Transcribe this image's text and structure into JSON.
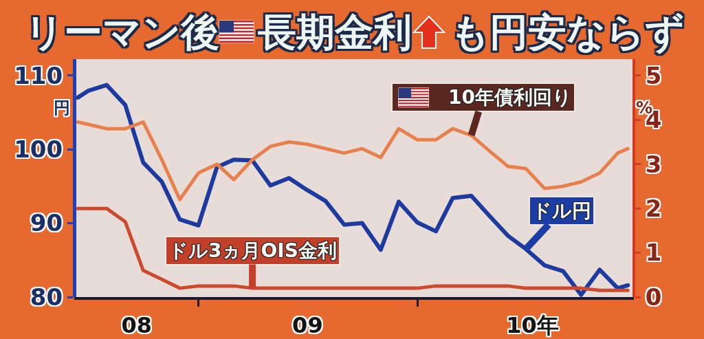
{
  "chart_data": {
    "type": "line",
    "title": "リーマン後　長期金利　も円安ならず",
    "ylabel": "円",
    "y2label": "%",
    "x": [
      "2008-06-14",
      "2008-07-01",
      "2008-08-01",
      "2008-09-01",
      "2008-10-01",
      "2008-11-01",
      "2008-12-01",
      "2009-01-01",
      "2009-02-01",
      "2009-03-01",
      "2009-04-01",
      "2009-05-01",
      "2009-06-01",
      "2009-07-01",
      "2009-08-01",
      "2009-09-01",
      "2009-10-01",
      "2009-11-01",
      "2009-12-01",
      "2010-01-01",
      "2010-02-01",
      "2010-03-01",
      "2010-04-01",
      "2010-05-01",
      "2010-06-01",
      "2010-07-01",
      "2010-08-01",
      "2010-09-01",
      "2010-10-01",
      "2010-11-01",
      "2010-12-01",
      "2010-12-18"
    ],
    "xlim": [
      "2008-06-08",
      "2010-12-28"
    ],
    "xticks": [
      {
        "value": "2008-09-20",
        "label": "08"
      },
      {
        "value": "2009-01-01",
        "label": null
      },
      {
        "value": "2009-07-02",
        "label": "09"
      },
      {
        "value": "2010-01-01",
        "label": null
      },
      {
        "value": "2010-07-12",
        "label": "10年"
      }
    ],
    "ylim": [
      80,
      112.2
    ],
    "yticks": [
      80,
      90,
      100,
      110
    ],
    "y2lim": [
      0,
      5.37
    ],
    "y2ticks": [
      0,
      1,
      2,
      3,
      4,
      5
    ],
    "series": [
      {
        "name": "ドル円",
        "color": "#1d3a9e",
        "values": [
          107.0,
          107.9,
          108.7,
          106.0,
          98.2,
          95.6,
          90.5,
          89.7,
          97.6,
          98.6,
          98.5,
          95.1,
          96.1,
          94.5,
          93.0,
          89.8,
          90.0,
          86.4,
          92.9,
          90.1,
          88.9,
          93.4,
          93.7,
          91.0,
          88.3,
          86.5,
          84.3,
          83.5,
          80.3,
          83.7,
          81.2,
          81.6
        ]
      },
      {
        "name": "10年債利回り",
        "color": "#e8804e",
        "axis": "y2",
        "values": [
          3.95,
          3.9,
          3.8,
          3.8,
          3.95,
          3.1,
          2.2,
          2.8,
          3.0,
          2.65,
          3.1,
          3.4,
          3.5,
          3.45,
          3.35,
          3.25,
          3.35,
          3.15,
          3.8,
          3.55,
          3.55,
          3.8,
          3.65,
          3.3,
          2.95,
          2.9,
          2.45,
          2.5,
          2.6,
          2.8,
          3.25,
          3.35
        ]
      },
      {
        "name": "ドル3ヵ月OIS金利",
        "color": "#cc4a2e",
        "axis": "y2",
        "values": [
          2.0,
          2.0,
          2.0,
          1.7,
          0.6,
          0.4,
          0.2,
          0.25,
          0.25,
          0.25,
          0.2,
          0.2,
          0.2,
          0.2,
          0.2,
          0.2,
          0.2,
          0.2,
          0.2,
          0.2,
          0.25,
          0.25,
          0.25,
          0.25,
          0.25,
          0.2,
          0.2,
          0.2,
          0.2,
          0.15,
          0.15,
          0.15
        ]
      }
    ]
  }
}
